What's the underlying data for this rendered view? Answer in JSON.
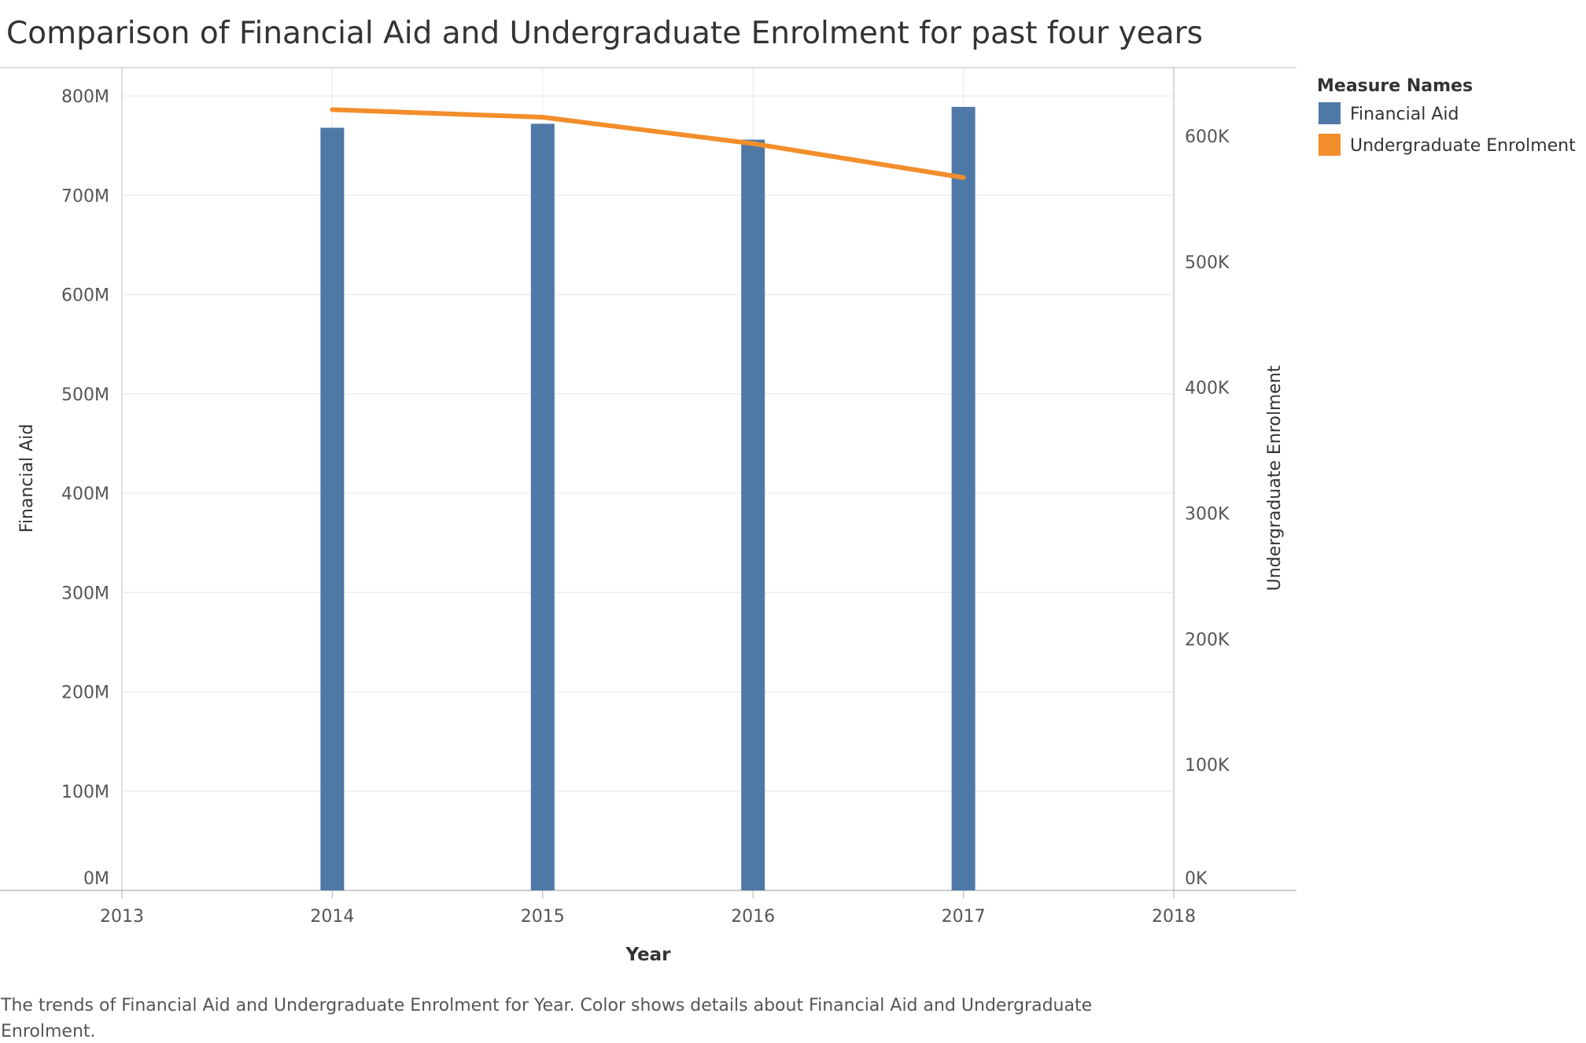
{
  "chart_data": {
    "type": "bar",
    "title": "Comparison of Financial Aid and Undergraduate Enrolment for past four years",
    "xlabel": "Year",
    "x_ticks": [
      "2013",
      "2014",
      "2015",
      "2016",
      "2017",
      "2018"
    ],
    "x_range": [
      2013,
      2018
    ],
    "years": [
      2014,
      2015,
      2016,
      2017
    ],
    "categories": [
      "2014",
      "2015",
      "2016",
      "2017"
    ],
    "y_left": {
      "label": "Financial Aid",
      "range": [
        0,
        800000000
      ],
      "ticks": [
        {
          "value": 0,
          "label": "0M"
        },
        {
          "value": 100000000,
          "label": "100M"
        },
        {
          "value": 200000000,
          "label": "200M"
        },
        {
          "value": 300000000,
          "label": "300M"
        },
        {
          "value": 400000000,
          "label": "400M"
        },
        {
          "value": 500000000,
          "label": "500M"
        },
        {
          "value": 600000000,
          "label": "600M"
        },
        {
          "value": 700000000,
          "label": "700M"
        },
        {
          "value": 800000000,
          "label": "800M"
        }
      ]
    },
    "y_right": {
      "label": "Undergraduate Enrolment",
      "range": [
        0,
        600000
      ],
      "ticks": [
        {
          "value": 0,
          "label": "0K"
        },
        {
          "value": 100000,
          "label": "100K"
        },
        {
          "value": 200000,
          "label": "200K"
        },
        {
          "value": 300000,
          "label": "300K"
        },
        {
          "value": 400000,
          "label": "400K"
        },
        {
          "value": 500000,
          "label": "500K"
        },
        {
          "value": 600000,
          "label": "600K"
        }
      ]
    },
    "series": [
      {
        "name": "Financial Aid",
        "type": "bar",
        "axis": "left",
        "color": "#4e79a7",
        "values": [
          768000000,
          772000000,
          756000000,
          789000000
        ]
      },
      {
        "name": "Undergraduate Enrolment",
        "type": "line",
        "axis": "right",
        "color": "#f28e2b",
        "values": [
          621000,
          615000,
          594000,
          567000
        ]
      }
    ],
    "grid": true,
    "legend": {
      "title": "Measure Names",
      "position": "top-right",
      "items": [
        {
          "label": "Financial Aid",
          "color": "#4e79a7"
        },
        {
          "label": "Undergraduate Enrolment",
          "color": "#f28e2b"
        }
      ]
    },
    "caption": {
      "line1": "The trends of Financial Aid and Undergraduate Enrolment for Year.  Color shows details about Financial Aid and Undergraduate",
      "line2": "Enrolment."
    }
  }
}
